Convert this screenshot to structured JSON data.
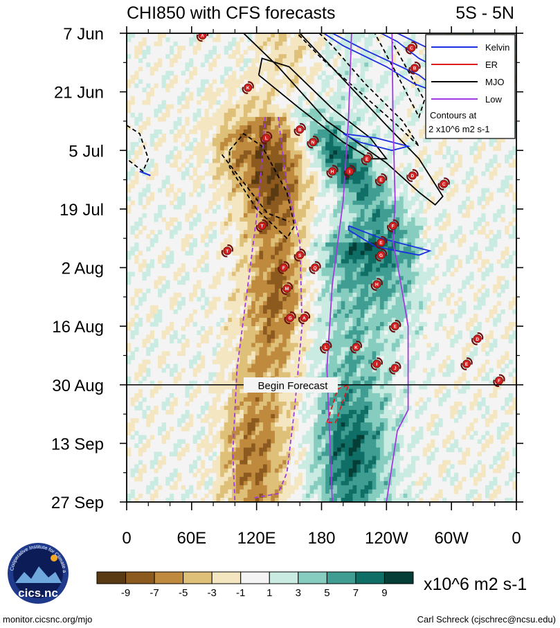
{
  "chart_data": {
    "type": "heatmap",
    "title": "CHI850 with CFS forecasts",
    "region": "5S - 5N",
    "ylabels": [
      "7 Jun",
      "21 Jun",
      "5 Jul",
      "19 Jul",
      "2 Aug",
      "16 Aug",
      "30 Aug",
      "13 Sep",
      "27 Sep"
    ],
    "xlabels": [
      "0",
      "60E",
      "120E",
      "180",
      "120W",
      "60W",
      "0"
    ],
    "xlim": [
      0,
      360
    ],
    "ylim_days": [
      0,
      112
    ],
    "forecast_label": "Begin Forecast",
    "forecast_day": 84,
    "units": "x10^6 m2 s-1",
    "colorbar": {
      "ticks": [
        "-9",
        "-7",
        "-5",
        "-3",
        "-1",
        "1",
        "3",
        "5",
        "7",
        "9"
      ],
      "colors": [
        "#5a3a12",
        "#8c5a1e",
        "#bf8a3e",
        "#dfc079",
        "#f4e6c0",
        "#f4f4f4",
        "#c9ebe2",
        "#86cdbf",
        "#3f9d92",
        "#0f6f66",
        "#053e36"
      ]
    },
    "legend": [
      {
        "label": "Kelvin",
        "color": "#1c2fe0",
        "dash": false
      },
      {
        "label": "ER",
        "color": "#e01a1a",
        "dash": false
      },
      {
        "label": "MJO",
        "color": "#000000",
        "dash": false
      },
      {
        "label": "Low",
        "color": "#a03ae0",
        "dash": false
      }
    ],
    "contour_note": [
      "Contours at",
      "2 x10^6 m2 s-1"
    ],
    "storms": [
      {
        "letter": "A",
        "lon": 70,
        "day": 0.5
      },
      {
        "letter": "C",
        "lon": 263,
        "day": 3.5
      },
      {
        "letter": "B",
        "lon": 266,
        "day": 8.3
      },
      {
        "letter": "K",
        "lon": 112,
        "day": 13
      },
      {
        "letter": "B",
        "lon": 160,
        "day": 23
      },
      {
        "letter": "L",
        "lon": 129,
        "day": 25
      },
      {
        "letter": "N",
        "lon": 172,
        "day": 26
      },
      {
        "letter": "E",
        "lon": 222,
        "day": 30
      },
      {
        "letter": "H",
        "lon": 190,
        "day": 33
      },
      {
        "letter": "I",
        "lon": 206,
        "day": 33
      },
      {
        "letter": "D",
        "lon": 264,
        "day": 34
      },
      {
        "letter": "E",
        "lon": 235,
        "day": 35
      },
      {
        "letter": "C",
        "lon": 293,
        "day": 36
      },
      {
        "letter": "T",
        "lon": 125,
        "day": 46
      },
      {
        "letter": "F",
        "lon": 246,
        "day": 46
      },
      {
        "letter": "E",
        "lon": 235,
        "day": 50
      },
      {
        "letter": "T",
        "lon": 93,
        "day": 52
      },
      {
        "letter": "S",
        "lon": 160,
        "day": 53
      },
      {
        "letter": "G",
        "lon": 235,
        "day": 53
      },
      {
        "letter": "F",
        "lon": 145,
        "day": 56
      },
      {
        "letter": "Q",
        "lon": 174,
        "day": 56
      },
      {
        "letter": "H",
        "lon": 231,
        "day": 60
      },
      {
        "letter": "M",
        "lon": 148,
        "day": 61
      },
      {
        "letter": "G",
        "lon": 151,
        "day": 68
      },
      {
        "letter": "A",
        "lon": 164,
        "day": 68
      },
      {
        "letter": "E",
        "lon": 248,
        "day": 70
      },
      {
        "letter": "D",
        "lon": 324,
        "day": 73
      },
      {
        "letter": "L",
        "lon": 184,
        "day": 75
      },
      {
        "letter": "K",
        "lon": 212,
        "day": 75
      },
      {
        "letter": "E",
        "lon": 314,
        "day": 79
      },
      {
        "letter": "I",
        "lon": 231,
        "day": 79
      },
      {
        "letter": "J",
        "lon": 248,
        "day": 80
      },
      {
        "letter": "F",
        "lon": 344,
        "day": 83
      }
    ]
  },
  "footer": {
    "logo_text": "cics.nc",
    "logo_ring": "Cooperative Institute for Climate and Satellites",
    "left": "monitor.cicsnc.org/mjo",
    "right": "Carl Schreck (cjschrec@ncsu.edu)"
  }
}
